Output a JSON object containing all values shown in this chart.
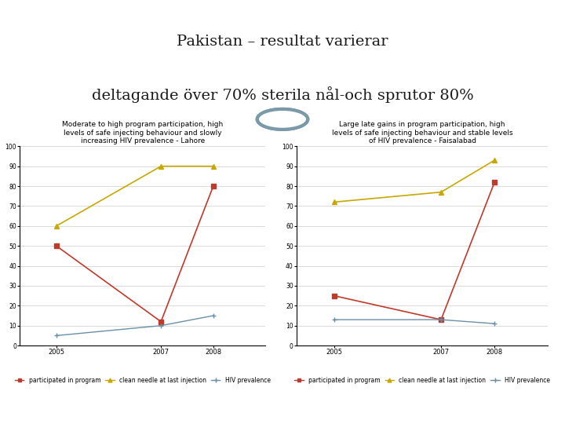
{
  "title_line1": "Pakistan – resultat varierar",
  "title_line2": "deltagande över 70% sterila nål-och sprutor 80%",
  "white_bg": "#ffffff",
  "gray_bg": "#b8c8d0",
  "bottom_bar": "#8fa8b2",
  "title_color": "#1a1a1a",
  "divider_color": "#8a9ea8",
  "circle_color": "#7a9aaa",
  "left_chart": {
    "title": "Moderate to high program participation, high\nlevels of safe injecting behaviour and slowly\nincreasing HIV prevalence - Lahore",
    "years": [
      2005,
      2007,
      2008
    ],
    "participated": [
      50,
      12,
      80
    ],
    "clean_needles": [
      60,
      90,
      90
    ],
    "hiv_prevalence": [
      5,
      10,
      15
    ],
    "yticks": [
      0,
      10,
      20,
      30,
      40,
      50,
      60,
      70,
      80,
      90,
      100
    ],
    "ytick_labels": [
      "0",
      "10",
      "20",
      "30",
      "40",
      "50",
      "60",
      "70",
      "80",
      "90",
      "100"
    ]
  },
  "right_chart": {
    "title": "Large late gains in program participation, high\nlevels of safe injecting behaviour and stable levels\nof HIV prevalence - Faisalabad",
    "years": [
      2005,
      2007,
      2008
    ],
    "participated": [
      25,
      13,
      82
    ],
    "clean_needles": [
      72,
      77,
      93
    ],
    "hiv_prevalence": [
      13,
      13,
      11
    ],
    "yticks": [
      0,
      10,
      20,
      30,
      40,
      50,
      60,
      70,
      80,
      90,
      100
    ],
    "ytick_labels": [
      "0",
      "10",
      "20",
      "30",
      "40",
      "50",
      "60",
      "70",
      "80",
      "90",
      "100"
    ]
  },
  "p_color": "#c0392b",
  "c_color": "#c8a800",
  "h_color": "#6a8fa8",
  "legend_participated": "participated in program",
  "legend_clean": "clean needle at last injection",
  "legend_hiv": "HIV prevalence",
  "title_fontsize": 14,
  "chart_title_fontsize": 6.5,
  "tick_fontsize": 6,
  "legend_fontsize": 5.5
}
